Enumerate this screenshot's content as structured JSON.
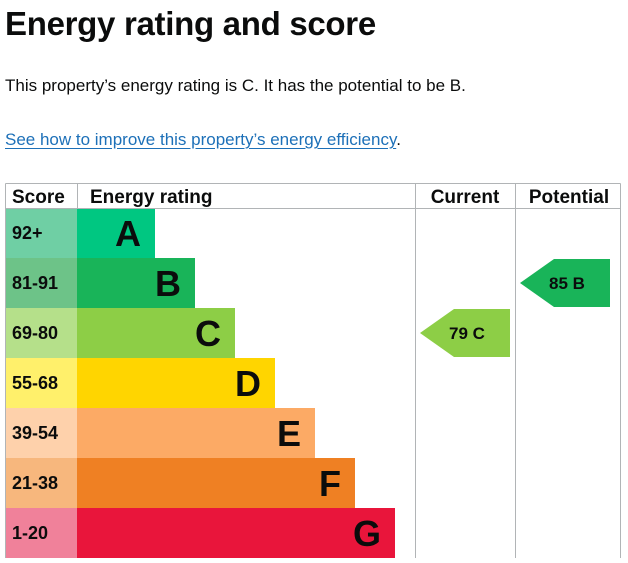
{
  "page": {
    "title": "Energy rating and score",
    "summary": "This property’s energy rating is C. It has the potential to be B.",
    "link_text": "See how to improve this property’s energy efficiency",
    "link_suffix": "."
  },
  "table": {
    "headers": {
      "score": "Score",
      "rating": "Energy rating",
      "current": "Current",
      "potential": "Potential"
    }
  },
  "chart_data": {
    "type": "bar",
    "title": "",
    "categories": [
      "A",
      "B",
      "C",
      "D",
      "E",
      "F",
      "G"
    ],
    "score_ranges": [
      "92+",
      "81-91",
      "69-80",
      "55-68",
      "39-54",
      "21-38",
      "1-20"
    ],
    "values": [
      1,
      2,
      3,
      4,
      5,
      6,
      7
    ],
    "colors": [
      "#00c781",
      "#19b459",
      "#8dce46",
      "#ffd500",
      "#fcaa65",
      "#ef8023",
      "#e9153b"
    ],
    "score_band_colors": [
      "#6fcfa4",
      "#6dc388",
      "#b5e08a",
      "#fff06b",
      "#fed1ab",
      "#f7b77d",
      "#f0819a"
    ],
    "current": {
      "score": "79",
      "band": "C",
      "color": "#8dce46"
    },
    "potential": {
      "score": "85",
      "band": "B",
      "color": "#19b459"
    }
  }
}
